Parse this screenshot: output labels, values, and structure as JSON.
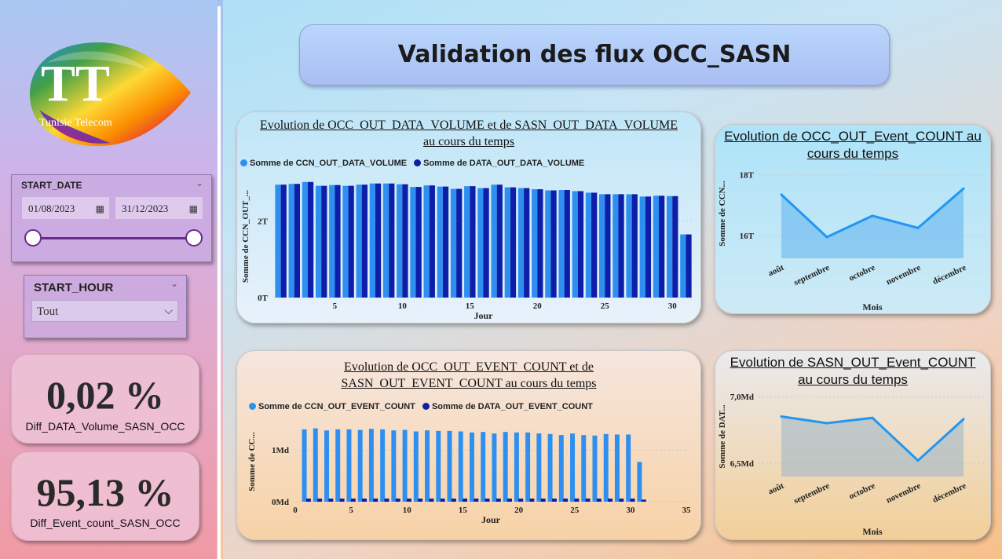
{
  "colors": {
    "ccn": "#2f8ff0",
    "data": "#0d1fa8",
    "line": "#2196f3"
  },
  "header": {
    "title": "Validation des flux OCC_SASN"
  },
  "logo": {
    "line1": "TT",
    "line2": "Tunisie Telecom"
  },
  "start_date_slicer": {
    "title": "START_DATE",
    "from": "01/08/2023",
    "to": "31/12/2023",
    "range_fraction": [
      0.0,
      1.0
    ]
  },
  "start_hour_slicer": {
    "title": "START_HOUR",
    "selected": "Tout"
  },
  "kpis": [
    {
      "value": "0,02 %",
      "label": "Diff_DATA_Volume_SASN_OCC"
    },
    {
      "value": "95,13 %",
      "label": "Diff_Event_count_SASN_OCC"
    }
  ],
  "chart_data": [
    {
      "id": "volume_by_day",
      "type": "bar",
      "title": "Evolution de OCC_OUT_DATA_VOLUME et de SASN_OUT_DATA_VOLUME au cours du temps",
      "title_lines": [
        "Evolution de OCC_OUT_DATA_VOLUME et de SASN_OUT_DATA_VOLUME",
        "au cours du temps"
      ],
      "xlabel": "Jour",
      "ylabel": "Somme de CCN_OUT_...",
      "ylim": [
        0,
        3.2
      ],
      "yticks": [
        {
          "v": 0,
          "label": "0T"
        },
        {
          "v": 2,
          "label": "2T"
        }
      ],
      "xticks": [
        5,
        10,
        15,
        20,
        25,
        30
      ],
      "xlim": [
        0.5,
        31.5
      ],
      "categories": [
        1,
        2,
        3,
        4,
        5,
        6,
        7,
        8,
        9,
        10,
        11,
        12,
        13,
        14,
        15,
        16,
        17,
        18,
        19,
        20,
        21,
        22,
        23,
        24,
        25,
        26,
        27,
        28,
        29,
        30,
        31
      ],
      "series": [
        {
          "name": "Somme de CCN_OUT_DATA_VOLUME",
          "values": [
            2.95,
            2.97,
            3.02,
            2.92,
            2.94,
            2.92,
            2.95,
            2.98,
            2.98,
            2.96,
            2.89,
            2.93,
            2.9,
            2.84,
            2.91,
            2.86,
            2.95,
            2.88,
            2.86,
            2.83,
            2.8,
            2.81,
            2.78,
            2.74,
            2.7,
            2.7,
            2.7,
            2.64,
            2.66,
            2.65,
            1.65
          ]
        },
        {
          "name": "Somme de DATA_OUT_DATA_VOLUME",
          "values": [
            2.95,
            2.97,
            3.02,
            2.92,
            2.94,
            2.92,
            2.95,
            2.98,
            2.98,
            2.96,
            2.89,
            2.93,
            2.9,
            2.84,
            2.91,
            2.86,
            2.95,
            2.88,
            2.86,
            2.83,
            2.8,
            2.81,
            2.78,
            2.74,
            2.7,
            2.7,
            2.7,
            2.64,
            2.66,
            2.65,
            1.65
          ]
        }
      ],
      "legend": "top-left"
    },
    {
      "id": "event_count_by_day",
      "type": "bar",
      "title": "Evolution de OCC_OUT_EVENT_COUNT et de SASN_OUT_EVENT_COUNT au cours du temps",
      "title_lines": [
        "Evolution de OCC_OUT_EVENT_COUNT et de",
        "SASN_OUT_EVENT_COUNT au cours du temps"
      ],
      "xlabel": "Jour",
      "ylabel": "Somme de CC...",
      "ylim": [
        0,
        1.55
      ],
      "yticks": [
        {
          "v": 0,
          "label": "0Md"
        },
        {
          "v": 1,
          "label": "1Md"
        }
      ],
      "xticks": [
        0,
        5,
        10,
        15,
        20,
        25,
        30,
        35
      ],
      "xlim": [
        0,
        35
      ],
      "categories": [
        1,
        2,
        3,
        4,
        5,
        6,
        7,
        8,
        9,
        10,
        11,
        12,
        13,
        14,
        15,
        16,
        17,
        18,
        19,
        20,
        21,
        22,
        23,
        24,
        25,
        26,
        27,
        28,
        29,
        30,
        31
      ],
      "series": [
        {
          "name": "Somme de CCN_OUT_EVENT_COUNT",
          "values": [
            1.4,
            1.42,
            1.38,
            1.4,
            1.4,
            1.39,
            1.41,
            1.4,
            1.38,
            1.39,
            1.36,
            1.38,
            1.37,
            1.37,
            1.36,
            1.34,
            1.35,
            1.32,
            1.35,
            1.34,
            1.34,
            1.32,
            1.31,
            1.29,
            1.32,
            1.29,
            1.28,
            1.31,
            1.3,
            1.3,
            0.77
          ]
        },
        {
          "name": "Somme de DATA_OUT_EVENT_COUNT",
          "values": [
            0.06,
            0.06,
            0.06,
            0.06,
            0.06,
            0.06,
            0.06,
            0.06,
            0.06,
            0.06,
            0.06,
            0.06,
            0.06,
            0.06,
            0.06,
            0.06,
            0.06,
            0.06,
            0.06,
            0.06,
            0.06,
            0.06,
            0.06,
            0.06,
            0.06,
            0.06,
            0.06,
            0.06,
            0.06,
            0.06,
            0.04
          ]
        }
      ],
      "legend": "top-left"
    },
    {
      "id": "occ_event_by_month",
      "type": "area",
      "title": "Evolution de OCC_OUT_Event_COUNT au cours du temps",
      "title_lines": [
        "Evolution de OCC_OUT_Event_COUNT au",
        "cours du temps"
      ],
      "xlabel": "Mois",
      "ylabel": "Somme de CCN...",
      "categories": [
        "août",
        "septembre",
        "octobre",
        "novembre",
        "décembre"
      ],
      "values": [
        17.35,
        15.95,
        16.65,
        16.25,
        17.55
      ],
      "ylim": [
        15.25,
        18.2
      ],
      "yticks": [
        {
          "v": 16,
          "label": "16T"
        },
        {
          "v": 18,
          "label": "18T"
        }
      ]
    },
    {
      "id": "sasn_event_by_month",
      "type": "area",
      "title": "Evolution de SASN_OUT_Event_COUNT au cours du temps",
      "title_lines": [
        "Evolution de SASN_OUT_Event_COUNT",
        "au cours du temps"
      ],
      "xlabel": "Mois",
      "ylabel": "Somme de DAT...",
      "categories": [
        "août",
        "septembre",
        "octobre",
        "novembre",
        "décembre"
      ],
      "values": [
        6.85,
        6.8,
        6.84,
        6.52,
        6.83
      ],
      "ylim": [
        6.4,
        7.0
      ],
      "yticks": [
        {
          "v": 6.5,
          "label": "6,5Md"
        },
        {
          "v": 7.0,
          "label": "7,0Md"
        }
      ]
    }
  ]
}
